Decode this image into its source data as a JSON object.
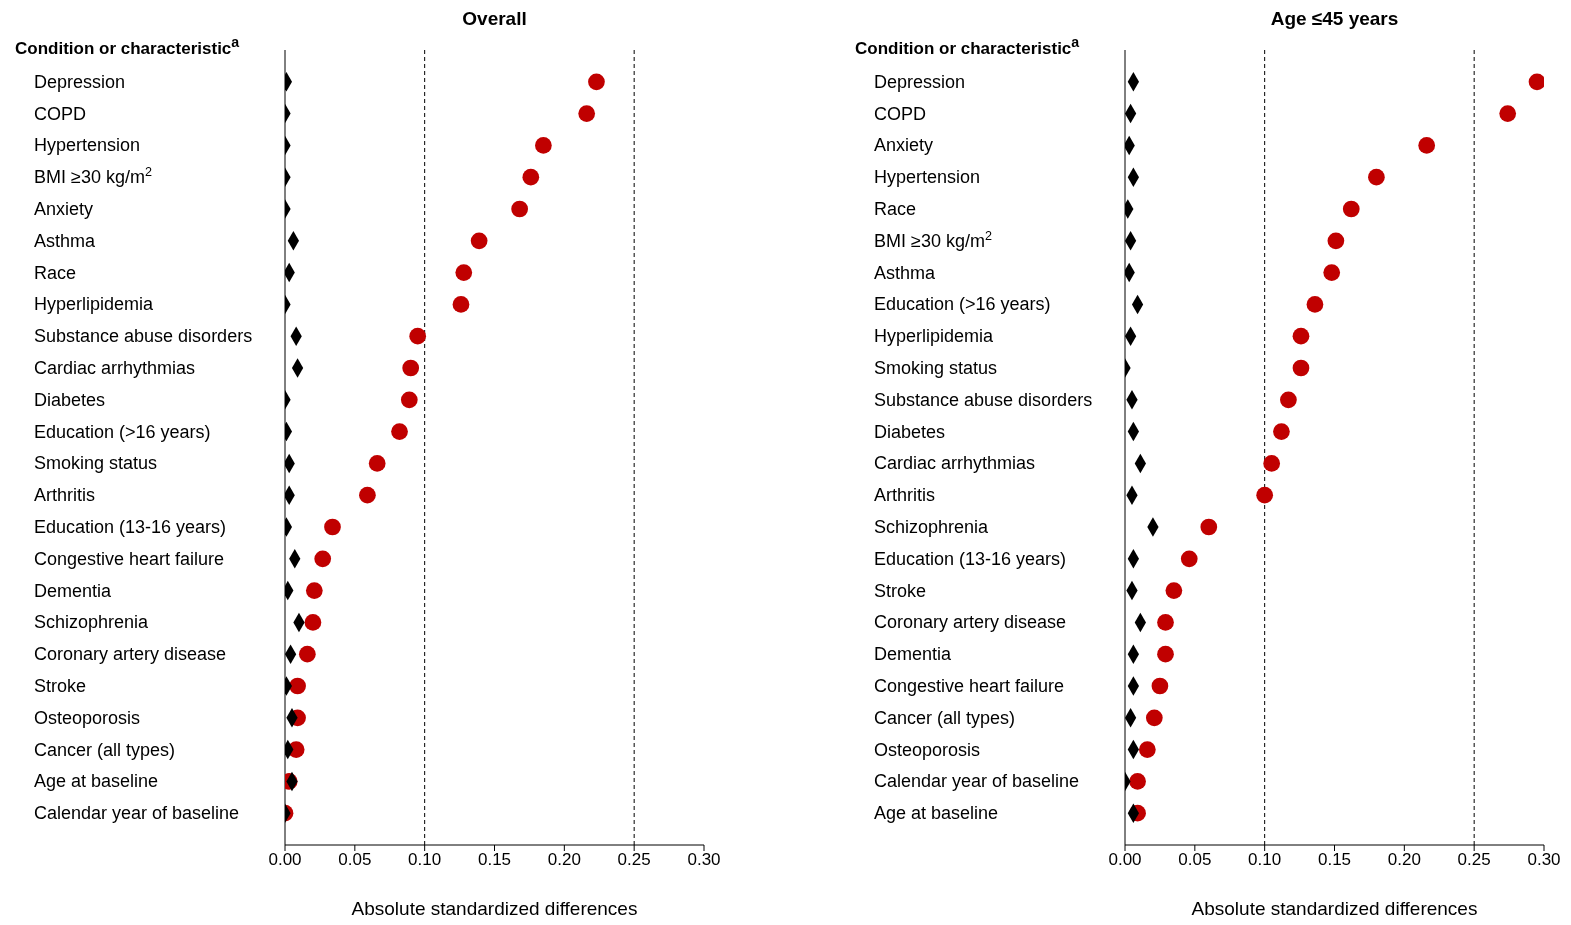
{
  "chart_data": [
    {
      "type": "scatter",
      "orientation": "horizontal",
      "title": "Overall",
      "ylabel": "Condition or characteristic$^{a}$",
      "xlabel": "Absolute standardized differences",
      "categories": [
        "Depression",
        "COPD",
        "Hypertension",
        "BMI ≥30 kg/m$^{2}$",
        "Anxiety",
        "Asthma",
        "Race",
        "Hyperlipidemia",
        "Substance abuse disorders",
        "Cardiac arrhythmias",
        "Diabetes",
        "Education (>16 years)",
        "Smoking status",
        "Arthritis",
        "Education (13-16 years)",
        "Congestive heart failure",
        "Dementia",
        "Schizophrenia",
        "Coronary artery disease",
        "Stroke",
        "Osteoporosis",
        "Cancer (all types)",
        "Age at baseline",
        "Calendar year of baseline"
      ],
      "series": [
        {
          "color": "#c00000",
          "marker": "circle",
          "values": [
            0.223,
            0.216,
            0.185,
            0.176,
            0.168,
            0.139,
            0.128,
            0.126,
            0.095,
            0.09,
            0.089,
            0.082,
            0.066,
            0.059,
            0.034,
            0.027,
            0.021,
            0.02,
            0.016,
            0.009,
            0.009,
            0.008,
            0.003,
            0.0
          ]
        },
        {
          "color": "#000000",
          "marker": "diamond",
          "values": [
            0.001,
            0.0,
            0.0,
            0.0,
            0.0,
            0.006,
            0.003,
            0.0,
            0.008,
            0.009,
            0.0,
            0.001,
            0.003,
            0.003,
            0.001,
            0.007,
            0.002,
            0.01,
            0.004,
            0.001,
            0.005,
            0.002,
            0.005,
            0.0
          ]
        }
      ],
      "xlim": [
        0,
        0.3
      ],
      "xticks": [
        {
          "value": 0,
          "label": "0.00"
        },
        {
          "value": 0.05,
          "label": "0.05"
        },
        {
          "value": 0.1,
          "label": "0.10"
        },
        {
          "value": 0.15,
          "label": "0.15"
        },
        {
          "value": 0.2,
          "label": "0.20"
        },
        {
          "value": 0.25,
          "label": "0.25"
        },
        {
          "value": 0.3,
          "label": "0.30"
        }
      ],
      "ref_lines": [
        {
          "axis": "x",
          "value": 0.1,
          "color": "#000000",
          "line_style": "dashed"
        },
        {
          "axis": "x",
          "value": 0.25,
          "color": "#000000",
          "line_style": "dashed"
        }
      ]
    },
    {
      "type": "scatter",
      "orientation": "horizontal",
      "title": "Age ≤45 years",
      "ylabel": "Condition or characteristic$^{a}$",
      "xlabel": "Absolute standardized differences",
      "categories": [
        "Depression",
        "COPD",
        "Anxiety",
        "Hypertension",
        "Race",
        "BMI ≥30 kg/m$^{2}$",
        "Asthma",
        "Education (>16 years)",
        "Hyperlipidemia",
        "Smoking status",
        "Substance abuse disorders",
        "Diabetes",
        "Cardiac arrhythmias",
        "Arthritis",
        "Schizophrenia",
        "Education (13-16 years)",
        "Stroke",
        "Coronary artery disease",
        "Dementia",
        "Congestive heart failure",
        "Cancer (all types)",
        "Osteoporosis",
        "Calendar year of baseline",
        "Age at baseline"
      ],
      "series": [
        {
          "color": "#c00000",
          "marker": "circle",
          "values": [
            0.295,
            0.274,
            0.216,
            0.18,
            0.162,
            0.151,
            0.148,
            0.136,
            0.126,
            0.126,
            0.117,
            0.112,
            0.105,
            0.1,
            0.06,
            0.046,
            0.035,
            0.029,
            0.029,
            0.025,
            0.021,
            0.016,
            0.009,
            0.009
          ]
        },
        {
          "color": "#000000",
          "marker": "diamond",
          "values": [
            0.006,
            0.004,
            0.003,
            0.006,
            0.002,
            0.004,
            0.003,
            0.009,
            0.004,
            0.0,
            0.005,
            0.006,
            0.011,
            0.005,
            0.02,
            0.006,
            0.005,
            0.011,
            0.006,
            0.006,
            0.004,
            0.006,
            0.0,
            0.006
          ]
        }
      ],
      "xlim": [
        0,
        0.3
      ],
      "xticks": [
        {
          "value": 0,
          "label": "0.00"
        },
        {
          "value": 0.05,
          "label": "0.05"
        },
        {
          "value": 0.1,
          "label": "0.10"
        },
        {
          "value": 0.15,
          "label": "0.15"
        },
        {
          "value": 0.2,
          "label": "0.20"
        },
        {
          "value": 0.25,
          "label": "0.25"
        },
        {
          "value": 0.3,
          "label": "0.30"
        }
      ],
      "ref_lines": [
        {
          "axis": "x",
          "value": 0.1,
          "color": "#000000",
          "line_style": "dashed"
        },
        {
          "axis": "x",
          "value": 0.25,
          "color": "#000000",
          "line_style": "dashed"
        }
      ]
    }
  ]
}
